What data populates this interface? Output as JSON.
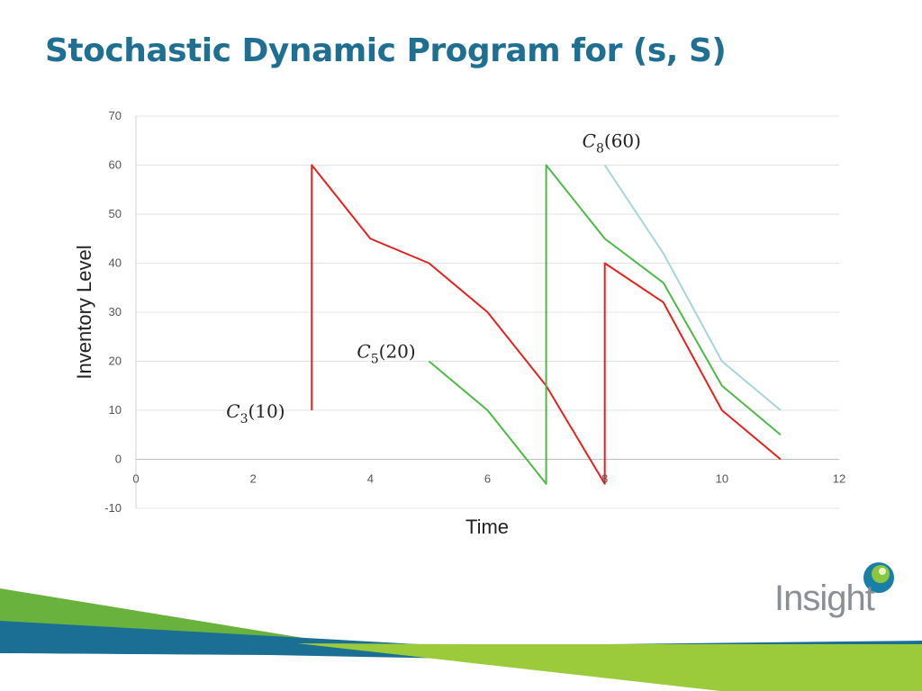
{
  "slide": {
    "title": "Stochastic Dynamic Program for (s, S)"
  },
  "logo": {
    "text": "Insight",
    "accent_colors": [
      "#1a7fa8",
      "#8cc63f"
    ]
  },
  "colors": {
    "title": "#1f6f93",
    "red_series": "#e8201f",
    "green_series": "#4fb848",
    "lightblue_series": "#a8d5d6",
    "footer_blue": "#1b6f94",
    "footer_green": "#6ab23e",
    "footer_lime": "#9bcb3b"
  },
  "chart_data": {
    "type": "line",
    "title": "",
    "xlabel": "Time",
    "ylabel": "Inventory Level",
    "xlim": [
      0,
      12
    ],
    "ylim": [
      -10,
      70
    ],
    "x_ticks": [
      0,
      2,
      4,
      6,
      8,
      10,
      12
    ],
    "y_ticks": [
      -10,
      0,
      10,
      20,
      30,
      40,
      50,
      60,
      70
    ],
    "grid": "horizontal",
    "legend": "none",
    "series": [
      {
        "color": "#e8201f",
        "points": [
          [
            3,
            10
          ],
          [
            3,
            60
          ],
          [
            4,
            45
          ],
          [
            5,
            40
          ],
          [
            6,
            30
          ],
          [
            7,
            15
          ],
          [
            8,
            -5
          ],
          [
            8,
            40
          ],
          [
            9,
            32
          ],
          [
            10,
            10
          ],
          [
            11,
            0
          ]
        ]
      },
      {
        "color": "#4fb848",
        "points": [
          [
            5,
            20
          ],
          [
            6,
            10
          ],
          [
            7,
            -5
          ],
          [
            7,
            60
          ],
          [
            8,
            45
          ],
          [
            9,
            36
          ],
          [
            10,
            15
          ],
          [
            11,
            5
          ]
        ]
      },
      {
        "color": "#a8d5d6",
        "points": [
          [
            8,
            60
          ],
          [
            9,
            42
          ],
          [
            10,
            20
          ],
          [
            11,
            10
          ]
        ]
      }
    ],
    "annotations": [
      {
        "var": "C",
        "sub": "3",
        "arg": "(10)",
        "x": 3,
        "y": 10
      },
      {
        "var": "C",
        "sub": "5",
        "arg": "(20)",
        "x": 5,
        "y": 20
      },
      {
        "var": "C",
        "sub": "8",
        "arg": "(60)",
        "x": 8,
        "y": 60
      }
    ]
  }
}
